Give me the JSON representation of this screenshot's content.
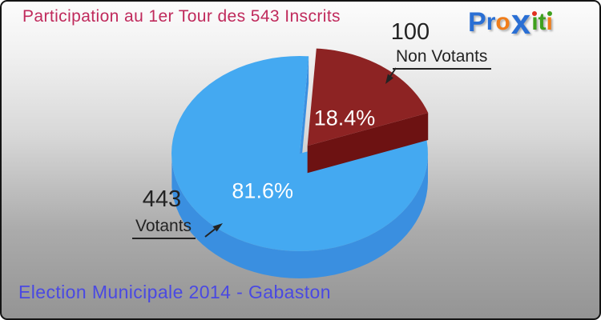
{
  "header": {
    "title": "Participation au 1er Tour des 543 Inscrits",
    "title_color": "#c02a5c"
  },
  "footer": {
    "subtitle": "Election Municipale 2014 - Gabaston",
    "subtitle_color": "#4a49e2"
  },
  "logo": {
    "name": "Proxiti",
    "letters": [
      {
        "char": "P",
        "color": "#2a6fd4",
        "cap": true
      },
      {
        "char": "r",
        "color": "#2a6fd4"
      },
      {
        "char": "o",
        "color": "#f07d1a"
      },
      {
        "char": "x",
        "color": "#2a6fd4",
        "big": true
      },
      {
        "char": "i",
        "color": "#3fa01e",
        "dot": "#e03020"
      },
      {
        "char": "t",
        "color": "#3fa01e"
      },
      {
        "char": "i",
        "color": "#f07d1a",
        "dot": "#3fa01e"
      }
    ]
  },
  "callouts": {
    "non_votants": {
      "value": "100",
      "label": "Non Votants"
    },
    "votants": {
      "value": "443",
      "label": "Votants"
    }
  },
  "chart_data": {
    "type": "pie",
    "style": "3d-exploded",
    "title": "Participation au 1er Tour des 543 Inscrits",
    "total_inscrits": 543,
    "start_angle_deg": 86,
    "slices": [
      {
        "label": "Votants",
        "value": 443,
        "pct": 81.6,
        "pct_label": "81.6%",
        "color": "#44a9f1",
        "side_color": "#3a8fe0",
        "exploded": false
      },
      {
        "label": "Non Votants",
        "value": 100,
        "pct": 18.4,
        "pct_label": "18.4%",
        "color": "#8d2323",
        "side_color": "#6d1212",
        "exploded": true
      }
    ],
    "text_color_on_slices": "#ffffff",
    "callout_text_color": "#232323"
  }
}
